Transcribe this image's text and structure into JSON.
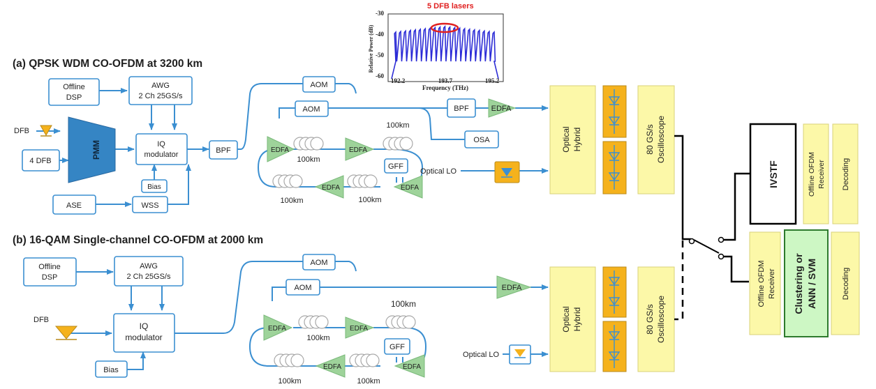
{
  "titles": {
    "a": "(a) QPSK WDM CO-OFDM at 3200 km",
    "b": "(b) 16-QAM Single-channel CO-OFDM at 2000 km"
  },
  "inset": {
    "annotation": "5 DFB lasers",
    "ylabel": "Relative Power (dB)",
    "xlabel": "Frequency (THz)",
    "yticks": [
      "-30",
      "-40",
      "-50",
      "-60"
    ],
    "xticks": [
      "192.2",
      "193.7",
      "195.2"
    ],
    "colors": {
      "trace": "#2c2cd6",
      "highlight": "#e02020"
    }
  },
  "a": {
    "offline_dsp": [
      "Offline",
      "DSP"
    ],
    "awg": [
      "AWG",
      "2 Ch 25GS/s"
    ],
    "dfb": "DFB",
    "four_dfb": "4 DFB",
    "pmm": "PMM",
    "iq": [
      "IQ",
      "modulator"
    ],
    "bias": "Bias",
    "ase": "ASE",
    "wss": "WSS",
    "bpf_in": "BPF",
    "aom1": "AOM",
    "aom2": "AOM",
    "bpf_out": "BPF",
    "edfa_out": "EDFA",
    "osa": "OSA",
    "optical_lo": "Optical LO",
    "edfa_loop": [
      "EDFA",
      "EDFA",
      "EDFA",
      "EDFA"
    ],
    "gff": "GFF",
    "km": [
      "100km",
      "100km",
      "100km",
      "100km"
    ],
    "hybrid": [
      "Optical",
      "Hybrid"
    ],
    "scope": [
      "80 GS/s",
      "Oscilloscope"
    ]
  },
  "b": {
    "offline_dsp": [
      "Offline",
      "DSP"
    ],
    "awg": [
      "AWG",
      "2 Ch 25GS/s"
    ],
    "dfb": "DFB",
    "iq": [
      "IQ",
      "modulator"
    ],
    "bias": "Bias",
    "aom1": "AOM",
    "aom2": "AOM",
    "edfa_out": "EDFA",
    "optical_lo": "Optical LO",
    "edfa_loop": [
      "EDFA",
      "EDFA",
      "EDFA",
      "EDFA"
    ],
    "gff": "GFF",
    "km": [
      "100km",
      "100km",
      "100km",
      "100km"
    ],
    "hybrid": [
      "Optical",
      "Hybrid"
    ],
    "scope": [
      "80 GS/s",
      "Oscilloscope"
    ]
  },
  "right": {
    "ivstf": "IVSTF",
    "offline_ofdm": [
      "Offline OFDM",
      "Receiver"
    ],
    "decoding": "Decoding",
    "classifier": [
      "Clustering or",
      "ANN / SVM"
    ],
    "colors": {
      "classifier_fill": "#cdf7c4",
      "classifier_border": "#2d7a2d"
    }
  }
}
